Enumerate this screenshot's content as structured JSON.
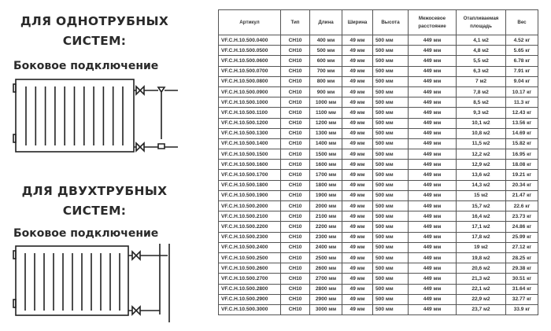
{
  "single_pipe": {
    "title_line1": "ДЛЯ ОДНОТРУБНЫХ",
    "title_line2": "СИСТЕМ:",
    "subtitle": "Боковое подключение"
  },
  "two_pipe": {
    "title_line1": "ДЛЯ ДВУХТРУБНЫХ",
    "title_line2": "СИСТЕМ:",
    "subtitle": "Боковое подключение"
  },
  "table": {
    "headers": [
      "Артикул",
      "Тип",
      "Длина",
      "Ширина",
      "Высота",
      "Межосевое расстояние",
      "Отапливаемая площадь",
      "Вес"
    ],
    "rows": [
      [
        "VF.C.H.10.500.0400",
        "CH10",
        "400 мм",
        "49 мм",
        "500 мм",
        "449 мм",
        "4,1 м2",
        "4.52 кг"
      ],
      [
        "VF.C.H.10.500.0500",
        "CH10",
        "500 мм",
        "49 мм",
        "500 мм",
        "449 мм",
        "4,8 м2",
        "5.65 кг"
      ],
      [
        "VF.C.H.10.500.0600",
        "CH10",
        "600 мм",
        "49 мм",
        "500 мм",
        "449 мм",
        "5,5 м2",
        "6.78 кг"
      ],
      [
        "VF.C.H.10.500.0700",
        "CH10",
        "700 мм",
        "49 мм",
        "500 мм",
        "449 мм",
        "6,3 м2",
        "7.91 кг"
      ],
      [
        "VF.C.H.10.500.0800",
        "CH10",
        "800 мм",
        "49 мм",
        "500 мм",
        "449 мм",
        "7 м2",
        "9.04 кг"
      ],
      [
        "VF.C.H.10.500.0900",
        "CH10",
        "900 мм",
        "49 мм",
        "500 мм",
        "449 мм",
        "7,8 м2",
        "10.17 кг"
      ],
      [
        "VF.C.H.10.500.1000",
        "CH10",
        "1000 мм",
        "49 мм",
        "500 мм",
        "449 мм",
        "8,5 м2",
        "11.3 кг"
      ],
      [
        "VF.C.H.10.500.1100",
        "CH10",
        "1100 мм",
        "49 мм",
        "500 мм",
        "449 мм",
        "9,3 м2",
        "12.43 кг"
      ],
      [
        "VF.C.H.10.500.1200",
        "CH10",
        "1200 мм",
        "49 мм",
        "500 мм",
        "449 мм",
        "10,1 м2",
        "13.56 кг"
      ],
      [
        "VF.C.H.10.500.1300",
        "CH10",
        "1300 мм",
        "49 мм",
        "500 мм",
        "449 мм",
        "10,8 м2",
        "14.69 кг"
      ],
      [
        "VF.C.H.10.500.1400",
        "CH10",
        "1400 мм",
        "49 мм",
        "500 мм",
        "449 мм",
        "11,5 м2",
        "15.82 кг"
      ],
      [
        "VF.C.H.10.500.1500",
        "CH10",
        "1500 мм",
        "49 мм",
        "500 мм",
        "449 мм",
        "12,2 м2",
        "16.95 кг"
      ],
      [
        "VF.C.H.10.500.1600",
        "CH10",
        "1600 мм",
        "49 мм",
        "500 мм",
        "449 мм",
        "12,9 м2",
        "18.08 кг"
      ],
      [
        "VF.C.H.10.500.1700",
        "CH10",
        "1700 мм",
        "49 мм",
        "500 мм",
        "449 мм",
        "13,6 м2",
        "19.21 кг"
      ],
      [
        "VF.C.H.10.500.1800",
        "CH10",
        "1800 мм",
        "49 мм",
        "500 мм",
        "449 мм",
        "14,3 м2",
        "20.34 кг"
      ],
      [
        "VF.C.H.10.500.1900",
        "CH10",
        "1900 мм",
        "49 мм",
        "500 мм",
        "449 мм",
        "15 м2",
        "21.47 кг"
      ],
      [
        "VF.C.H.10.500.2000",
        "CH10",
        "2000 мм",
        "49 мм",
        "500 мм",
        "449 мм",
        "15,7 м2",
        "22.6 кг"
      ],
      [
        "VF.C.H.10.500.2100",
        "CH10",
        "2100 мм",
        "49 мм",
        "500 мм",
        "449 мм",
        "16,4 м2",
        "23.73 кг"
      ],
      [
        "VF.C.H.10.500.2200",
        "CH10",
        "2200 мм",
        "49 мм",
        "500 мм",
        "449 мм",
        "17,1 м2",
        "24.86 кг"
      ],
      [
        "VF.C.H.10.500.2300",
        "CH10",
        "2300 мм",
        "49 мм",
        "500 мм",
        "449 мм",
        "17,8 м2",
        "25.99 кг"
      ],
      [
        "VF.C.H.10.500.2400",
        "CH10",
        "2400 мм",
        "49 мм",
        "500 мм",
        "449 мм",
        "19 м2",
        "27.12 кг"
      ],
      [
        "VF.C.H.10.500.2500",
        "CH10",
        "2500 мм",
        "49 мм",
        "500 мм",
        "449 мм",
        "19,8 м2",
        "28.25 кг"
      ],
      [
        "VF.C.H.10.500.2600",
        "CH10",
        "2600 мм",
        "49 мм",
        "500 мм",
        "449 мм",
        "20,6 м2",
        "29.38 кг"
      ],
      [
        "VF.C.H.10.500.2700",
        "CH10",
        "2700 мм",
        "49 мм",
        "500 мм",
        "449 мм",
        "21,3 м2",
        "30.51 кг"
      ],
      [
        "VF.C.H.10.500.2800",
        "CH10",
        "2800 мм",
        "49 мм",
        "500 мм",
        "449 мм",
        "22,1 м2",
        "31.64 кг"
      ],
      [
        "VF.C.H.10.500.2900",
        "CH10",
        "2900 мм",
        "49 мм",
        "500 мм",
        "449 мм",
        "22,9 м2",
        "32.77 кг"
      ],
      [
        "VF.C.H.10.500.3000",
        "CH10",
        "3000 мм",
        "49 мм",
        "500 мм",
        "449 мм",
        "23,7 м2",
        "33.9 кг"
      ]
    ]
  }
}
